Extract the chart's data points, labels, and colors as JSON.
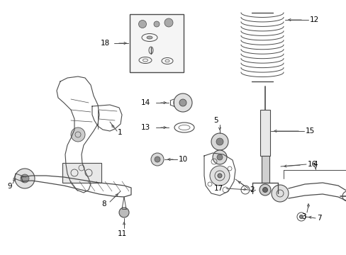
{
  "bg_color": "#ffffff",
  "line_color": "#4a4a4a",
  "text_color": "#000000",
  "fig_width": 4.89,
  "fig_height": 3.6,
  "dpi": 100
}
